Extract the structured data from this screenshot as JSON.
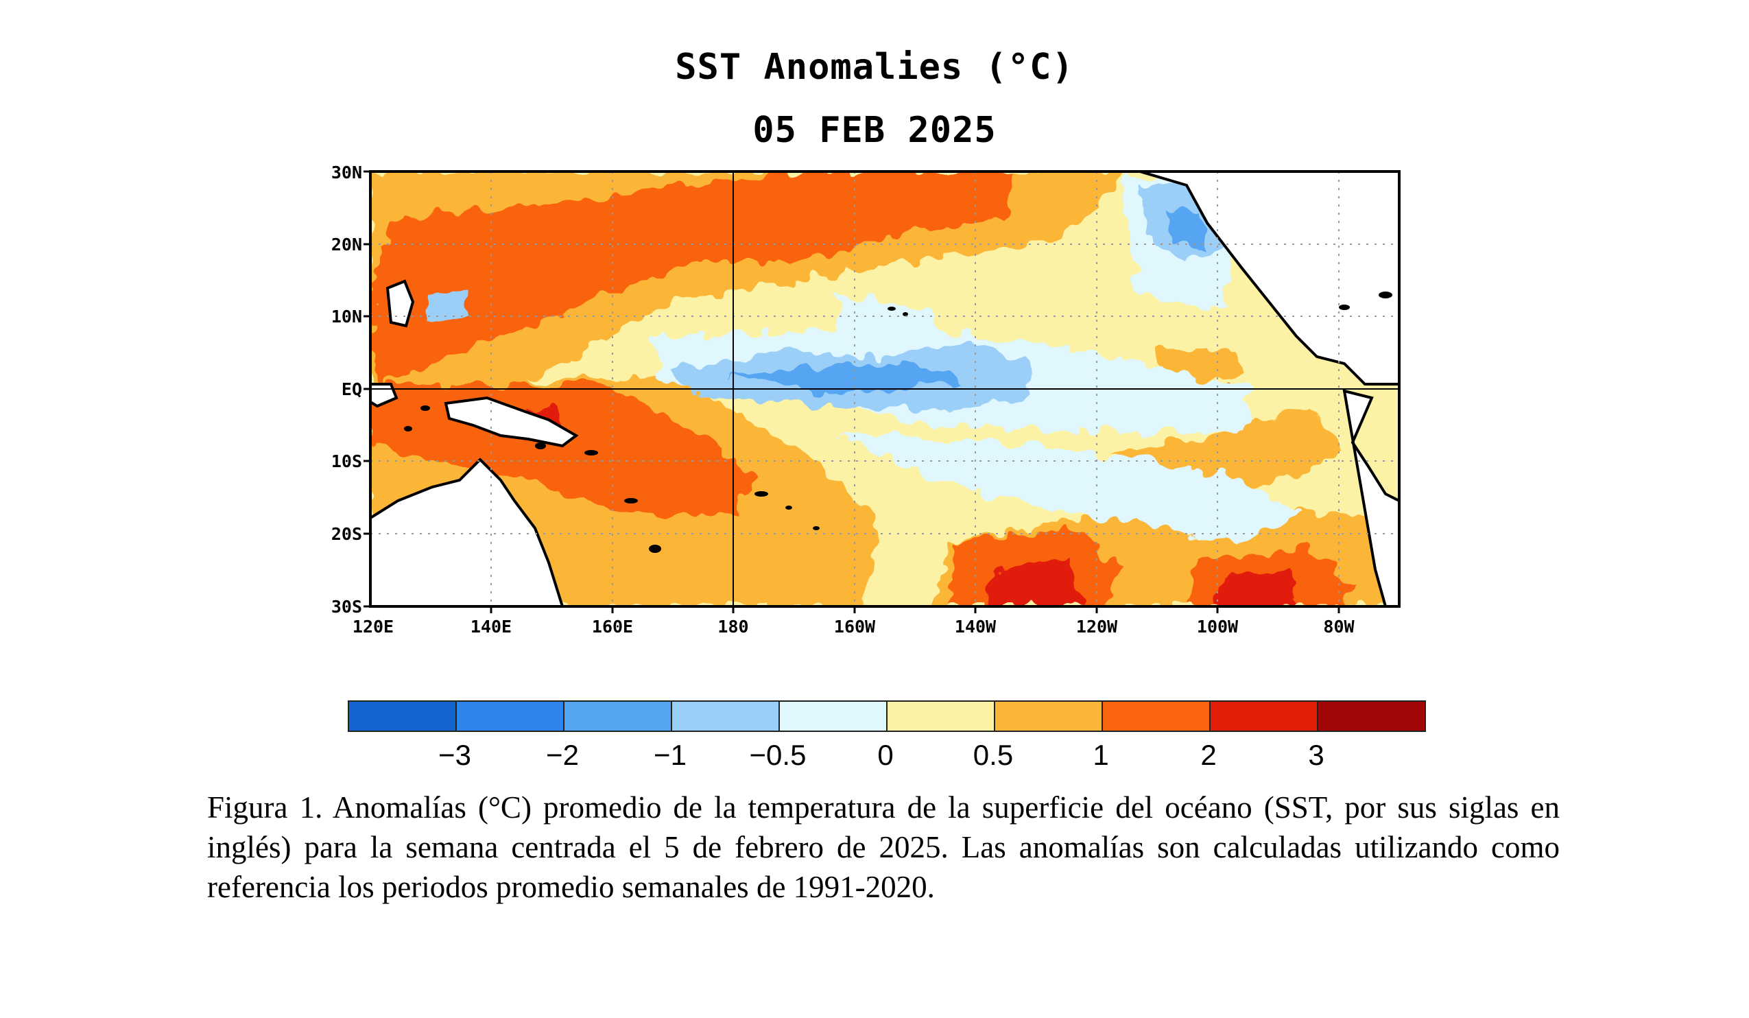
{
  "title": "SST Anomalies (°C)",
  "date": "05 FEB 2025",
  "map": {
    "lat_labels": [
      "30N",
      "20N",
      "10N",
      "EQ",
      "10S",
      "20S",
      "30S"
    ],
    "lat_values": [
      30,
      20,
      10,
      0,
      -10,
      -20,
      -30
    ],
    "lon_labels": [
      "120E",
      "140E",
      "160E",
      "180",
      "160W",
      "140W",
      "120W",
      "100W",
      "80W"
    ],
    "lon_values": [
      120,
      140,
      160,
      180,
      200,
      220,
      240,
      260,
      280
    ],
    "lon_range": [
      120,
      290
    ],
    "lat_range": [
      -30,
      30
    ],
    "projection": "equirectangular"
  },
  "colorbar": {
    "tick_labels": [
      "−3",
      "−2",
      "−1",
      "−0.5",
      "0",
      "0.5",
      "1",
      "2",
      "3"
    ],
    "colors": [
      "#1565d1",
      "#2e86ea",
      "#55a5f2",
      "#9ccff8",
      "#e0f7fd",
      "#fcf2a6",
      "#fbb637",
      "#fa6410",
      "#e11f08",
      "#a10707"
    ]
  },
  "caption": "Figura 1. Anomalías (°C) promedio de la temperatura de la superficie del océano (SST, por sus siglas en inglés) para la semana centrada el 5 de febrero de 2025. Las anomalías son calculadas utilizando como referencia los periodos promedio semanales de 1991-2020."
}
